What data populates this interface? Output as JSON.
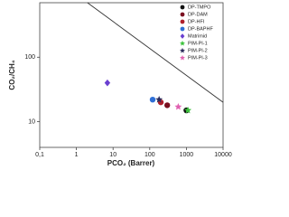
{
  "chart_data": {
    "type": "scatter",
    "x_label": "PCO₂ (Barrer)",
    "y_label": "CO₂/CH₄",
    "xlim": [
      0.1,
      10000
    ],
    "ylim": [
      4,
      700
    ],
    "log_x": true,
    "log_y": true,
    "xticks": [
      {
        "value": 0.1,
        "label": "0,1"
      },
      1,
      10,
      100,
      1000,
      10000
    ],
    "yticks": [
      10,
      100
    ],
    "legend": "upper right",
    "reference_line": {
      "x": [
        2,
        10000
      ],
      "y": [
        700,
        20
      ],
      "color": "#333333"
    },
    "series": [
      {
        "name": "DP-TMPO",
        "color": "#111111",
        "marker": "circle",
        "x": [
          1000
        ],
        "y": [
          15
        ]
      },
      {
        "name": "DP-DAM",
        "color": "#7a1020",
        "marker": "circle",
        "x": [
          300
        ],
        "y": [
          18
        ]
      },
      {
        "name": "DP-HFI",
        "color": "#b0202c",
        "marker": "circle",
        "x": [
          200
        ],
        "y": [
          20
        ]
      },
      {
        "name": "DP-BAPHF",
        "color": "#2f6fd6",
        "marker": "circle",
        "x": [
          120
        ],
        "y": [
          22
        ]
      },
      {
        "name": "Matrimid",
        "color": "#6a3fd0",
        "marker": "diamond",
        "x": [
          7
        ],
        "y": [
          40
        ]
      },
      {
        "name": "PIM-PI-1",
        "color": "#3cc23c",
        "marker": "star",
        "x": [
          1100
        ],
        "y": [
          15
        ]
      },
      {
        "name": "PIM-PI-2",
        "color": "#2a2a5a",
        "marker": "star",
        "x": [
          180
        ],
        "y": [
          22
        ]
      },
      {
        "name": "PIM-PI-3",
        "color": "#e060b0",
        "marker": "star",
        "x": [
          600
        ],
        "y": [
          17
        ]
      }
    ]
  }
}
